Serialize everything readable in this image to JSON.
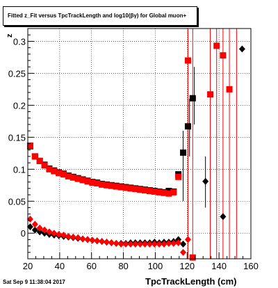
{
  "header": {
    "title": "Fitted  z_Fit versus TpcTrackLength and log10(βγ) for Global muon+"
  },
  "footer": {
    "datestamp": "Sat Sep  9 11:38:04 2017"
  },
  "chart_data": {
    "type": "scatter",
    "title": "Fitted  z_Fit versus TpcTrackLength and log10(βγ) for Global muon+",
    "xlabel": "TpcTrackLength (cm)",
    "ylabel": "z",
    "xlim": [
      20,
      160
    ],
    "ylim": [
      -0.04,
      0.32
    ],
    "xticks": [
      20,
      40,
      60,
      80,
      100,
      120,
      140,
      160
    ],
    "yticks": [
      0,
      0.05,
      0.1,
      0.15,
      0.2,
      0.25,
      0.3
    ],
    "ytick_labels": [
      "0",
      "0.05",
      "0.1",
      "0.15",
      "0.2",
      "0.25",
      "0.3"
    ],
    "grid": true,
    "series": [
      {
        "marker": "square",
        "color": "#000000",
        "points": [
          [
            21.5,
            0.136
          ],
          [
            24.5,
            0.12
          ],
          [
            27.5,
            0.113
          ],
          [
            30.5,
            0.107
          ],
          [
            33.5,
            0.101
          ],
          [
            36.5,
            0.098
          ],
          [
            39.5,
            0.095
          ],
          [
            42.5,
            0.093
          ],
          [
            45.5,
            0.09
          ],
          [
            48.5,
            0.088
          ],
          [
            51.5,
            0.086
          ],
          [
            54.5,
            0.084
          ],
          [
            57.5,
            0.082
          ],
          [
            60.5,
            0.08
          ],
          [
            63.5,
            0.079
          ],
          [
            66.5,
            0.077
          ],
          [
            69.5,
            0.076
          ],
          [
            72.5,
            0.075
          ],
          [
            75.5,
            0.074
          ],
          [
            78.5,
            0.073
          ],
          [
            81.5,
            0.072
          ],
          [
            84.5,
            0.071
          ],
          [
            87.5,
            0.07
          ],
          [
            90.5,
            0.069
          ],
          [
            93.5,
            0.068
          ],
          [
            96.5,
            0.067
          ],
          [
            99.5,
            0.066
          ],
          [
            102.5,
            0.065
          ],
          [
            105.5,
            0.064
          ],
          [
            108.5,
            0.066
          ],
          [
            111.5,
            0.065
          ],
          [
            114.5,
            0.092
          ],
          [
            117.5,
            0.126
          ],
          [
            120.5,
            0.167
          ],
          [
            123.5,
            0.211
          ]
        ]
      },
      {
        "marker": "square",
        "color": "#ff0000",
        "points": [
          [
            21.5,
            0.137
          ],
          [
            24.5,
            0.12
          ],
          [
            27.5,
            0.113
          ],
          [
            30.5,
            0.106
          ],
          [
            33.5,
            0.1
          ],
          [
            36.5,
            0.097
          ],
          [
            39.5,
            0.094
          ],
          [
            42.5,
            0.092
          ],
          [
            45.5,
            0.089
          ],
          [
            48.5,
            0.087
          ],
          [
            51.5,
            0.085
          ],
          [
            54.5,
            0.083
          ],
          [
            57.5,
            0.081
          ],
          [
            60.5,
            0.079
          ],
          [
            63.5,
            0.078
          ],
          [
            66.5,
            0.076
          ],
          [
            69.5,
            0.075
          ],
          [
            72.5,
            0.074
          ],
          [
            75.5,
            0.073
          ],
          [
            78.5,
            0.072
          ],
          [
            81.5,
            0.071
          ],
          [
            84.5,
            0.07
          ],
          [
            87.5,
            0.069
          ],
          [
            90.5,
            0.068
          ],
          [
            93.5,
            0.067
          ],
          [
            96.5,
            0.066
          ],
          [
            99.5,
            0.065
          ],
          [
            102.5,
            0.064
          ],
          [
            105.5,
            0.063
          ],
          [
            108.5,
            0.062
          ],
          [
            111.5,
            0.064
          ],
          [
            114.5,
            0.088
          ],
          [
            120.5,
            0.27
          ],
          [
            123.5,
            -0.038
          ],
          [
            134.5,
            0.217
          ],
          [
            138.5,
            0.293
          ],
          [
            142.5,
            0.278
          ],
          [
            146.5,
            0.225
          ]
        ]
      },
      {
        "marker": "diamond",
        "color": "#000000",
        "points": [
          [
            21.5,
            0.01
          ],
          [
            24.5,
            0.005
          ],
          [
            27.5,
            0.002
          ],
          [
            30.5,
            0.0
          ],
          [
            33.5,
            -0.002
          ],
          [
            36.5,
            -0.003
          ],
          [
            39.5,
            -0.004
          ],
          [
            42.5,
            -0.005
          ],
          [
            45.5,
            -0.006
          ],
          [
            48.5,
            -0.007
          ],
          [
            51.5,
            -0.008
          ],
          [
            54.5,
            -0.009
          ],
          [
            57.5,
            -0.01
          ],
          [
            60.5,
            -0.011
          ],
          [
            63.5,
            -0.012
          ],
          [
            66.5,
            -0.013
          ],
          [
            69.5,
            -0.014
          ],
          [
            72.5,
            -0.015
          ],
          [
            75.5,
            -0.016
          ],
          [
            78.5,
            -0.016
          ],
          [
            81.5,
            -0.016
          ],
          [
            84.5,
            -0.015
          ],
          [
            87.5,
            -0.015
          ],
          [
            90.5,
            -0.015
          ],
          [
            93.5,
            -0.015
          ],
          [
            96.5,
            -0.015
          ],
          [
            99.5,
            -0.014
          ],
          [
            102.5,
            -0.015
          ],
          [
            105.5,
            -0.014
          ],
          [
            108.5,
            -0.014
          ],
          [
            111.5,
            -0.013
          ],
          [
            114.5,
            -0.01
          ],
          [
            117.5,
            -0.017
          ],
          [
            131.5,
            0.081
          ],
          [
            142.5,
            0.026
          ],
          [
            154.5,
            0.288
          ]
        ]
      },
      {
        "marker": "diamond",
        "color": "#ff0000",
        "points": [
          [
            21.5,
            0.022
          ],
          [
            24.5,
            0.014
          ],
          [
            27.5,
            0.008
          ],
          [
            30.5,
            0.005
          ],
          [
            33.5,
            0.002
          ],
          [
            36.5,
            0.0
          ],
          [
            39.5,
            -0.002
          ],
          [
            42.5,
            -0.003
          ],
          [
            45.5,
            -0.005
          ],
          [
            48.5,
            -0.006
          ],
          [
            51.5,
            -0.007
          ],
          [
            54.5,
            -0.009
          ],
          [
            57.5,
            -0.01
          ],
          [
            60.5,
            -0.011
          ],
          [
            63.5,
            -0.012
          ],
          [
            66.5,
            -0.013
          ],
          [
            69.5,
            -0.014
          ],
          [
            72.5,
            -0.015
          ],
          [
            75.5,
            -0.016
          ],
          [
            78.5,
            -0.017
          ],
          [
            81.5,
            -0.017
          ],
          [
            84.5,
            -0.017
          ],
          [
            87.5,
            -0.017
          ],
          [
            90.5,
            -0.017
          ],
          [
            93.5,
            -0.017
          ],
          [
            96.5,
            -0.017
          ],
          [
            99.5,
            -0.017
          ],
          [
            102.5,
            -0.017
          ],
          [
            105.5,
            -0.017
          ],
          [
            108.5,
            -0.016
          ],
          [
            111.5,
            -0.016
          ],
          [
            114.5,
            -0.015
          ],
          [
            117.5,
            -0.03
          ],
          [
            120.5,
            -0.01
          ]
        ]
      }
    ]
  }
}
